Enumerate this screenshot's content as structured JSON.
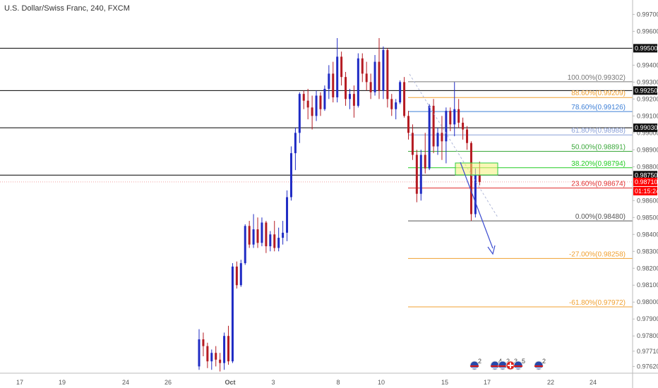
{
  "chart_data": {
    "type": "candlestick",
    "title": "U.S. Dollar/Swiss Franc, 240, FXCM",
    "ylim": [
      0.9758,
      0.9976
    ],
    "y_ticks": [
      "0.99700",
      "0.99600",
      "0.99400",
      "0.99300",
      "0.99200",
      "0.99100",
      "0.99000",
      "0.98900",
      "0.98800",
      "0.98600",
      "0.98500",
      "0.98400",
      "0.98300",
      "0.98200",
      "0.98100",
      "0.98000",
      "0.97900",
      "0.97800",
      "0.97710",
      "0.97620"
    ],
    "x_ticks": [
      "17",
      "19",
      "24",
      "26",
      "Oct",
      "3",
      "8",
      "10",
      "15",
      "17",
      "22",
      "24"
    ],
    "horizontal_levels": [
      {
        "label": "0.99500",
        "value": 0.995
      },
      {
        "label": "0.99250",
        "value": 0.9925
      },
      {
        "label": "0.99030",
        "value": 0.9903
      },
      {
        "label": "0.98750",
        "value": 0.9875
      }
    ],
    "price_marker": {
      "label": "0.98710",
      "value": 0.9871,
      "countdown": "01:15:24",
      "color": "#ff0000"
    },
    "fib_levels": [
      {
        "label": "100.00%(0.99302)",
        "value": 0.99302,
        "color": "#777777"
      },
      {
        "label": "88.60%(0.99209)",
        "value": 0.99209,
        "color": "#f0a030"
      },
      {
        "label": "78.60%(0.99126)",
        "value": 0.99126,
        "color": "#3d7fd6"
      },
      {
        "label": "61.80%(0.98988)",
        "value": 0.98988,
        "color": "#8aa0d8"
      },
      {
        "label": "50.00%(0.98891)",
        "value": 0.98891,
        "color": "#3aa83a"
      },
      {
        "label": "38.20%(0.98794)",
        "value": 0.98794,
        "color": "#22cc22"
      },
      {
        "label": "23.60%(0.98674)",
        "value": 0.98674,
        "color": "#e03030"
      },
      {
        "label": "0.00%(0.98480)",
        "value": 0.9848,
        "color": "#555555"
      },
      {
        "label": "-27.00%(0.98258)",
        "value": 0.98258,
        "color": "#f0a030"
      },
      {
        "label": "-61.80%(0.97972)",
        "value": 0.97972,
        "color": "#f0a030"
      }
    ],
    "candles": [
      {
        "o": 0.9762,
        "h": 0.9784,
        "l": 0.976,
        "c": 0.9778
      },
      {
        "o": 0.9778,
        "h": 0.9782,
        "l": 0.9768,
        "c": 0.9774
      },
      {
        "o": 0.9774,
        "h": 0.9776,
        "l": 0.9761,
        "c": 0.9765
      },
      {
        "o": 0.9765,
        "h": 0.9772,
        "l": 0.976,
        "c": 0.977
      },
      {
        "o": 0.977,
        "h": 0.9774,
        "l": 0.9762,
        "c": 0.9766
      },
      {
        "o": 0.9766,
        "h": 0.977,
        "l": 0.9759,
        "c": 0.9764
      },
      {
        "o": 0.9764,
        "h": 0.9782,
        "l": 0.976,
        "c": 0.978
      },
      {
        "o": 0.978,
        "h": 0.9786,
        "l": 0.9763,
        "c": 0.9765
      },
      {
        "o": 0.9765,
        "h": 0.9823,
        "l": 0.9764,
        "c": 0.9821
      },
      {
        "o": 0.9821,
        "h": 0.9824,
        "l": 0.9808,
        "c": 0.981
      },
      {
        "o": 0.981,
        "h": 0.9825,
        "l": 0.9809,
        "c": 0.9823
      },
      {
        "o": 0.9823,
        "h": 0.9846,
        "l": 0.9822,
        "c": 0.9845
      },
      {
        "o": 0.9845,
        "h": 0.9848,
        "l": 0.9832,
        "c": 0.9834
      },
      {
        "o": 0.9834,
        "h": 0.9852,
        "l": 0.9832,
        "c": 0.9843
      },
      {
        "o": 0.9843,
        "h": 0.985,
        "l": 0.9832,
        "c": 0.9835
      },
      {
        "o": 0.9835,
        "h": 0.985,
        "l": 0.9833,
        "c": 0.9847
      },
      {
        "o": 0.9847,
        "h": 0.9848,
        "l": 0.9829,
        "c": 0.9833
      },
      {
        "o": 0.9833,
        "h": 0.9842,
        "l": 0.983,
        "c": 0.984
      },
      {
        "o": 0.984,
        "h": 0.9848,
        "l": 0.983,
        "c": 0.9832
      },
      {
        "o": 0.9832,
        "h": 0.9844,
        "l": 0.983,
        "c": 0.9838
      },
      {
        "o": 0.9838,
        "h": 0.9848,
        "l": 0.9834,
        "c": 0.9841
      },
      {
        "o": 0.9841,
        "h": 0.9866,
        "l": 0.9836,
        "c": 0.9862
      },
      {
        "o": 0.9862,
        "h": 0.9892,
        "l": 0.986,
        "c": 0.9888
      },
      {
        "o": 0.9888,
        "h": 0.9903,
        "l": 0.9878,
        "c": 0.99
      },
      {
        "o": 0.99,
        "h": 0.9924,
        "l": 0.9894,
        "c": 0.9923
      },
      {
        "o": 0.9923,
        "h": 0.9925,
        "l": 0.9914,
        "c": 0.9919
      },
      {
        "o": 0.9919,
        "h": 0.9926,
        "l": 0.9908,
        "c": 0.9915
      },
      {
        "o": 0.9915,
        "h": 0.9922,
        "l": 0.9902,
        "c": 0.991
      },
      {
        "o": 0.991,
        "h": 0.9925,
        "l": 0.9907,
        "c": 0.9922
      },
      {
        "o": 0.9922,
        "h": 0.9924,
        "l": 0.991,
        "c": 0.9914
      },
      {
        "o": 0.9914,
        "h": 0.9928,
        "l": 0.9913,
        "c": 0.9926
      },
      {
        "o": 0.9926,
        "h": 0.994,
        "l": 0.992,
        "c": 0.9935
      },
      {
        "o": 0.9935,
        "h": 0.9942,
        "l": 0.9918,
        "c": 0.9921
      },
      {
        "o": 0.9921,
        "h": 0.9956,
        "l": 0.9918,
        "c": 0.9945
      },
      {
        "o": 0.9945,
        "h": 0.9948,
        "l": 0.9928,
        "c": 0.9933
      },
      {
        "o": 0.9933,
        "h": 0.9936,
        "l": 0.9916,
        "c": 0.992
      },
      {
        "o": 0.992,
        "h": 0.9926,
        "l": 0.9914,
        "c": 0.9923
      },
      {
        "o": 0.9923,
        "h": 0.9928,
        "l": 0.9909,
        "c": 0.9916
      },
      {
        "o": 0.9916,
        "h": 0.9947,
        "l": 0.9915,
        "c": 0.9944
      },
      {
        "o": 0.9944,
        "h": 0.9947,
        "l": 0.993,
        "c": 0.9935
      },
      {
        "o": 0.9935,
        "h": 0.9942,
        "l": 0.9925,
        "c": 0.993
      },
      {
        "o": 0.993,
        "h": 0.9935,
        "l": 0.992,
        "c": 0.9924
      },
      {
        "o": 0.9924,
        "h": 0.9946,
        "l": 0.9922,
        "c": 0.9942
      },
      {
        "o": 0.9942,
        "h": 0.9956,
        "l": 0.992,
        "c": 0.9925
      },
      {
        "o": 0.9925,
        "h": 0.9951,
        "l": 0.992,
        "c": 0.9949
      },
      {
        "o": 0.9949,
        "h": 0.995,
        "l": 0.9915,
        "c": 0.992
      },
      {
        "o": 0.992,
        "h": 0.9923,
        "l": 0.991,
        "c": 0.9914
      },
      {
        "o": 0.9914,
        "h": 0.992,
        "l": 0.9908,
        "c": 0.9918
      },
      {
        "o": 0.9918,
        "h": 0.9931,
        "l": 0.9917,
        "c": 0.993
      },
      {
        "o": 0.993,
        "h": 0.9933,
        "l": 0.9909,
        "c": 0.991
      },
      {
        "o": 0.991,
        "h": 0.9913,
        "l": 0.9896,
        "c": 0.99
      },
      {
        "o": 0.99,
        "h": 0.9905,
        "l": 0.9884,
        "c": 0.9887
      },
      {
        "o": 0.9887,
        "h": 0.989,
        "l": 0.9859,
        "c": 0.9864
      },
      {
        "o": 0.9864,
        "h": 0.989,
        "l": 0.986,
        "c": 0.9887
      },
      {
        "o": 0.9887,
        "h": 0.99,
        "l": 0.9876,
        "c": 0.9879
      },
      {
        "o": 0.9879,
        "h": 0.9917,
        "l": 0.9878,
        "c": 0.9916
      },
      {
        "o": 0.9916,
        "h": 0.992,
        "l": 0.9888,
        "c": 0.9892
      },
      {
        "o": 0.9892,
        "h": 0.9903,
        "l": 0.9887,
        "c": 0.99
      },
      {
        "o": 0.99,
        "h": 0.991,
        "l": 0.9884,
        "c": 0.9895
      },
      {
        "o": 0.9895,
        "h": 0.9915,
        "l": 0.9882,
        "c": 0.9913
      },
      {
        "o": 0.9913,
        "h": 0.9915,
        "l": 0.9901,
        "c": 0.9905
      },
      {
        "o": 0.9905,
        "h": 0.993,
        "l": 0.9898,
        "c": 0.9914
      },
      {
        "o": 0.9914,
        "h": 0.992,
        "l": 0.9903,
        "c": 0.9906
      },
      {
        "o": 0.9906,
        "h": 0.9909,
        "l": 0.9896,
        "c": 0.9902
      },
      {
        "o": 0.9902,
        "h": 0.9904,
        "l": 0.989,
        "c": 0.9894
      },
      {
        "o": 0.9894,
        "h": 0.9895,
        "l": 0.9848,
        "c": 0.9852
      },
      {
        "o": 0.9852,
        "h": 0.9879,
        "l": 0.985,
        "c": 0.9875
      },
      {
        "o": 0.9875,
        "h": 0.9883,
        "l": 0.9869,
        "c": 0.9871
      }
    ]
  },
  "events": [
    {
      "flag": "us-flag-icon",
      "count": "2"
    },
    {
      "flag": "us-flag-icon",
      "count": "4"
    },
    {
      "flag": "us-flag-icon",
      "count": "2"
    },
    {
      "flag": "ch-flag-icon",
      "count": "3"
    },
    {
      "flag": "us-flag-icon",
      "count": "5"
    },
    {
      "flag": "us-flag-icon",
      "count": "2"
    }
  ],
  "colors": {
    "bull": "#1f2bc4",
    "bear": "#b51b22",
    "grid": "#000000",
    "axis_text": "#555555"
  }
}
